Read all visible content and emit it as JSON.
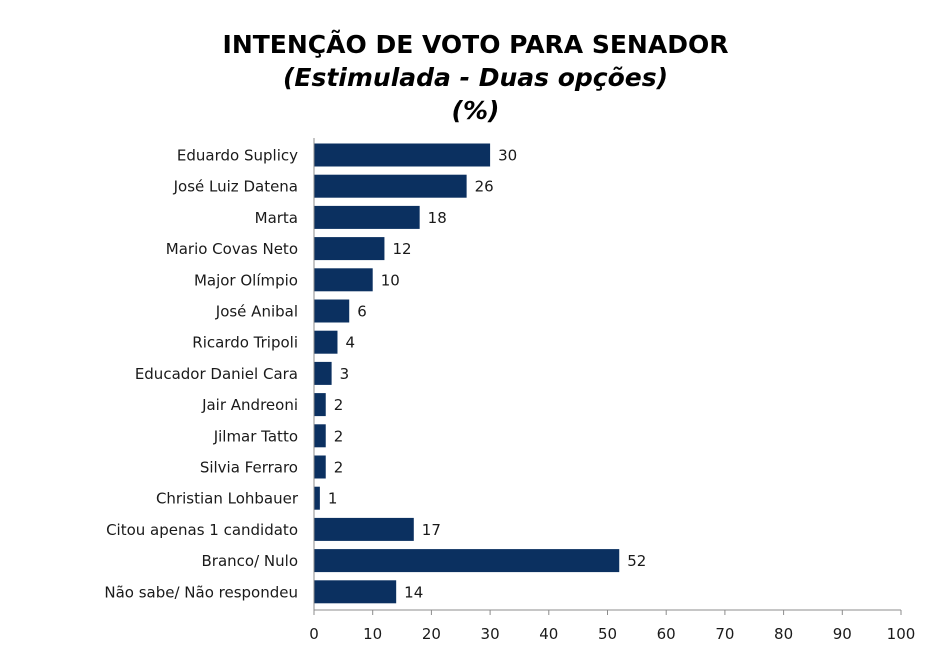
{
  "chart_data": {
    "type": "bar",
    "orientation": "horizontal",
    "title": "INTENÇÃO DE VOTO PARA SENADOR",
    "subtitle": "(Estimulada - Duas opções)",
    "unit_line": "(%)",
    "categories": [
      "Eduardo Suplicy",
      "José Luiz Datena",
      "Marta",
      "Mario Covas Neto",
      "Major Olímpio",
      "José Anibal",
      "Ricardo Tripoli",
      "Educador Daniel Cara",
      "Jair Andreoni",
      "Jilmar Tatto",
      "Silvia Ferraro",
      "Christian Lohbauer",
      "Citou apenas 1 candidato",
      "Branco/ Nulo",
      "Não sabe/ Não respondeu"
    ],
    "values": [
      30,
      26,
      18,
      12,
      10,
      6,
      4,
      3,
      2,
      2,
      2,
      1,
      17,
      52,
      14
    ],
    "xlim": [
      0,
      100
    ],
    "xticks": [
      0,
      10,
      20,
      30,
      40,
      50,
      60,
      70,
      80,
      90,
      100
    ],
    "bar_color": "#0b3060",
    "grid": false,
    "legend": "none"
  }
}
